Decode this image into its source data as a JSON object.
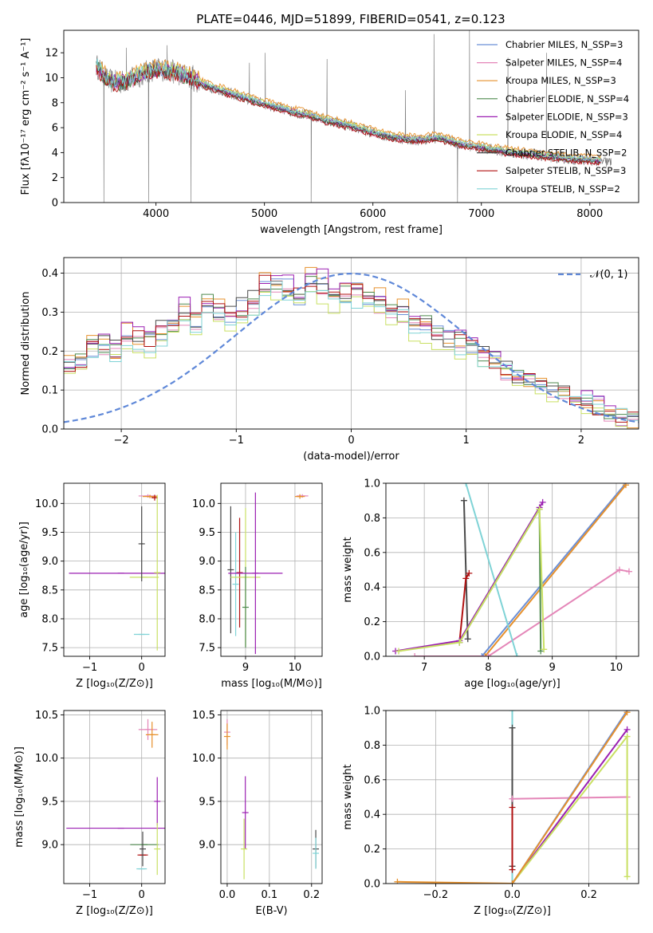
{
  "title": "PLATE=0446, MJD=51899, FIBERID=0541, z=0.123",
  "colors": {
    "Chabrier MILES": "#6b8fd6",
    "Salpeter MILES": "#e486b8",
    "Kroupa MILES": "#e6902b",
    "Chabrier ELODIE": "#4e8a4e",
    "Salpeter ELODIE": "#9b1fb2",
    "Kroupa ELODIE": "#c9e063",
    "Chabrier STELIB": "#4a4a4a",
    "Salpeter STELIB": "#b01010",
    "Kroupa STELIB": "#7fd3d6",
    "data": "#808080",
    "gauss": "#5f88d8"
  },
  "chart_data": [
    {
      "id": "spectrum",
      "type": "line",
      "title": "PLATE=0446, MJD=51899, FIBERID=0541, z=0.123",
      "xlabel": "wavelength [Angstrom, rest frame]",
      "ylabel": "Flux [fλ10⁻¹⁷ erg cm⁻² s⁻¹ A⁻¹]",
      "xlim": [
        3150,
        8450
      ],
      "ylim": [
        0,
        13.8
      ],
      "xticks": [
        4000,
        5000,
        6000,
        7000,
        8000
      ],
      "yticks": [
        0,
        2,
        4,
        6,
        8,
        10,
        12
      ],
      "legend_position": "top-right",
      "legend": [
        "Chabrier MILES, N_SSP=3",
        "Salpeter MILES, N_SSP=4",
        "Kroupa MILES, N_SSP=3",
        "Chabrier ELODIE, N_SSP=4",
        "Salpeter ELODIE, N_SSP=3",
        "Kroupa ELODIE, N_SSP=4",
        "Chabrier STELIB, N_SSP=2",
        "Salpeter STELIB, N_SSP=3",
        "Kroupa STELIB, N_SSP=2"
      ],
      "continuum": {
        "x": [
          3450,
          3550,
          3650,
          3750,
          3850,
          3950,
          4050,
          4150,
          4300,
          4450,
          4600,
          4800,
          5000,
          5200,
          5400,
          5600,
          5800,
          6000,
          6200,
          6400,
          6600,
          6800,
          7000,
          7200,
          7400,
          7600,
          7800,
          8000,
          8200
        ],
        "y": [
          11.0,
          9.8,
          9.6,
          9.8,
          10.2,
          10.6,
          10.7,
          10.5,
          10.1,
          9.4,
          9.0,
          8.4,
          7.9,
          7.4,
          7.0,
          6.5,
          6.1,
          5.6,
          5.2,
          5.0,
          5.2,
          4.7,
          4.4,
          4.1,
          3.9,
          3.7,
          3.5,
          3.4,
          3.2
        ]
      },
      "model_offsets": [
        0.0,
        -0.15,
        0.35,
        -0.1,
        0.05,
        0.15,
        -0.05,
        -0.2,
        0.1
      ],
      "data_noise": 0.45,
      "data_emission_lines": [
        {
          "x": 3727,
          "y": 12.4
        },
        {
          "x": 4102,
          "y": 12.6
        },
        {
          "x": 4341,
          "y": 11.0
        },
        {
          "x": 4861,
          "y": 11.2
        },
        {
          "x": 5007,
          "y": 12.0
        },
        {
          "x": 5577,
          "y": 11.5
        },
        {
          "x": 6300,
          "y": 9.0
        },
        {
          "x": 6563,
          "y": 13.5
        },
        {
          "x": 6890,
          "y": 13.8
        },
        {
          "x": 7245,
          "y": 11.6
        },
        {
          "x": 7600,
          "y": 12.0
        }
      ],
      "data_dips": [
        {
          "x": 3520,
          "y": 0
        },
        {
          "x": 3932,
          "y": 0
        },
        {
          "x": 4322,
          "y": 0
        },
        {
          "x": 5430,
          "y": 0
        },
        {
          "x": 6780,
          "y": 0
        }
      ],
      "x_range": [
        3450,
        8200
      ]
    },
    {
      "id": "residuals",
      "type": "histogram",
      "xlabel": "(data-model)/error",
      "ylabel": "Normed distribution",
      "xlim": [
        -2.5,
        2.5
      ],
      "ylim": [
        0,
        0.44
      ],
      "xticks": [
        -2,
        -1,
        0,
        1,
        2
      ],
      "yticks": [
        0.0,
        0.1,
        0.2,
        0.3,
        0.4
      ],
      "legend": [
        "𝒩(0, 1)"
      ],
      "legend_position": "top-right",
      "bin_edges_range": [
        -2.5,
        2.5
      ],
      "bin_count": 50,
      "base_profile": [
        0.16,
        0.18,
        0.21,
        0.22,
        0.2,
        0.24,
        0.23,
        0.22,
        0.25,
        0.27,
        0.3,
        0.28,
        0.33,
        0.3,
        0.29,
        0.31,
        0.33,
        0.37,
        0.38,
        0.36,
        0.34,
        0.39,
        0.37,
        0.33,
        0.35,
        0.35,
        0.33,
        0.33,
        0.31,
        0.3,
        0.26,
        0.27,
        0.24,
        0.23,
        0.22,
        0.21,
        0.19,
        0.18,
        0.15,
        0.14,
        0.13,
        0.12,
        0.1,
        0.1,
        0.08,
        0.07,
        0.06,
        0.04,
        0.03,
        0.02
      ],
      "series_scales": [
        1.0,
        0.97,
        1.03,
        0.99,
        1.05,
        0.9,
        1.02,
        1.0,
        0.95
      ]
    },
    {
      "id": "age-vs-Z",
      "type": "errorbar",
      "xlabel": "Z [log₁₀(Z/Z⊙)]",
      "ylabel": "age [log₁₀(age/yr)]",
      "xlim": [
        -1.5,
        0.45
      ],
      "ylim": [
        7.35,
        10.35
      ],
      "xticks": [
        -1,
        0
      ],
      "yticks": [
        7.5,
        8.0,
        8.5,
        9.0,
        9.5,
        10.0
      ],
      "points": [
        {
          "s": "Salpeter ELODIE",
          "x": -0.4,
          "xerr": 1.0,
          "y": 8.79,
          "yerr": 0
        },
        {
          "s": "Kroupa ELODIE",
          "x": 0.05,
          "xerr": 0.28,
          "y": 8.72,
          "yerr": 0
        },
        {
          "s": "Chabrier STELIB",
          "x": 0.0,
          "xerr": 0.02,
          "y": 9.3,
          "yerr": 0.65
        },
        {
          "s": "Kroupa STELIB",
          "x": 0.0,
          "xerr": 0.15,
          "y": 7.73,
          "yerr": 0
        },
        {
          "s": "Salpeter MILES",
          "x": 0.12,
          "xerr": 0.18,
          "y": 10.13,
          "yerr": 0.03
        },
        {
          "s": "Kroupa MILES",
          "x": 0.16,
          "xerr": 0.14,
          "y": 10.12,
          "yerr": 0.03
        },
        {
          "s": "Salpeter STELIB",
          "x": 0.25,
          "xerr": 0.05,
          "y": 10.1,
          "yerr": 0.05
        },
        {
          "s": "Kroupa ELODIE",
          "x": 0.3,
          "xerr": 0.0,
          "y": 8.8,
          "yerr": 1.35
        }
      ]
    },
    {
      "id": "age-vs-mass",
      "type": "errorbar",
      "xlabel": "mass [log₁₀(M/M⊙)]",
      "ylabel": "",
      "xlim": [
        8.5,
        10.55
      ],
      "ylim": [
        7.35,
        10.35
      ],
      "xticks": [
        9,
        10
      ],
      "yticks": [
        7.5,
        8.0,
        8.5,
        9.0,
        9.5,
        10.0
      ],
      "points": [
        {
          "s": "Chabrier STELIB",
          "x": 8.7,
          "xerr": 0,
          "y": 8.85,
          "yerr": 1.1
        },
        {
          "s": "Kroupa STELIB",
          "x": 8.8,
          "xerr": 0,
          "y": 8.6,
          "yerr": 0.9
        },
        {
          "s": "Salpeter STELIB",
          "x": 8.88,
          "xerr": 0,
          "y": 8.8,
          "yerr": 0.95
        },
        {
          "s": "Kroupa ELODIE",
          "x": 9.0,
          "xerr": 0.3,
          "y": 8.72,
          "yerr": 1.2
        },
        {
          "s": "Chabrier ELODIE",
          "x": 9.0,
          "xerr": 0,
          "y": 8.2,
          "yerr": 0.7
        },
        {
          "s": "Salpeter ELODIE",
          "x": 9.2,
          "xerr": 0.55,
          "y": 8.79,
          "yerr": 1.4
        },
        {
          "s": "Salpeter MILES",
          "x": 10.15,
          "xerr": 0.12,
          "y": 10.13,
          "yerr": 0.03
        },
        {
          "s": "Kroupa MILES",
          "x": 10.1,
          "xerr": 0.1,
          "y": 10.12,
          "yerr": 0.04
        }
      ]
    },
    {
      "id": "weight-vs-age",
      "type": "line",
      "xlabel": "age [log₁₀(age/yr)]",
      "ylabel": "mass weight",
      "xlim": [
        6.4,
        10.35
      ],
      "ylim": [
        0,
        1.0
      ],
      "xticks": [
        7,
        8,
        9,
        10
      ],
      "yticks": [
        0.0,
        0.2,
        0.4,
        0.6,
        0.8,
        1.0
      ],
      "series": [
        {
          "s": "Chabrier MILES",
          "x": [
            7.9,
            10.15
          ],
          "y": [
            0.0,
            1.0
          ]
        },
        {
          "s": "Kroupa MILES",
          "x": [
            7.95,
            10.15
          ],
          "y": [
            0.0,
            0.99
          ]
        },
        {
          "s": "Salpeter MILES",
          "x": [
            6.85,
            8.0,
            10.05,
            10.2
          ],
          "y": [
            0.0,
            0.0,
            0.5,
            0.49
          ]
        },
        {
          "s": "Kroupa STELIB",
          "x": [
            7.65,
            8.45
          ],
          "y": [
            1.0,
            0.0
          ]
        },
        {
          "s": "Chabrier STELIB",
          "x": [
            7.62,
            7.68
          ],
          "y": [
            0.9,
            0.1
          ]
        },
        {
          "s": "Salpeter STELIB",
          "x": [
            7.55,
            7.65,
            7.7
          ],
          "y": [
            0.08,
            0.45,
            0.48
          ]
        },
        {
          "s": "Salpeter ELODIE",
          "x": [
            6.55,
            7.55,
            8.8,
            8.85
          ],
          "y": [
            0.03,
            0.09,
            0.86,
            0.89
          ]
        },
        {
          "s": "Chabrier ELODIE",
          "x": [
            7.55,
            8.8,
            8.82
          ],
          "y": [
            0.08,
            0.85,
            0.03
          ]
        },
        {
          "s": "Kroupa ELODIE",
          "x": [
            6.6,
            7.55,
            8.8,
            8.87
          ],
          "y": [
            0.03,
            0.08,
            0.85,
            0.04
          ]
        }
      ]
    },
    {
      "id": "mass-vs-Z",
      "type": "errorbar",
      "xlabel": "Z [log₁₀(Z/Z⊙)]",
      "ylabel": "mass [log₁₀(M/M⊙)]",
      "xlim": [
        -1.5,
        0.45
      ],
      "ylim": [
        8.55,
        10.55
      ],
      "xticks": [
        -1,
        0
      ],
      "yticks": [
        9.0,
        9.5,
        10.0,
        10.5
      ],
      "points": [
        {
          "s": "Salpeter MILES",
          "x": 0.12,
          "xerr": 0.18,
          "y": 10.33,
          "yerr": 0.12
        },
        {
          "s": "Kroupa MILES",
          "x": 0.2,
          "xerr": 0.12,
          "y": 10.27,
          "yerr": 0.15
        },
        {
          "s": "Salpeter ELODIE",
          "x": -0.4,
          "xerr": 1.05,
          "y": 9.19,
          "yerr": 0
        },
        {
          "s": "Salpeter ELODIE",
          "x": 0.3,
          "xerr": 0,
          "y": 9.5,
          "yerr": 0.28
        },
        {
          "s": "Chabrier ELODIE",
          "x": 0.05,
          "xerr": 0.27,
          "y": 9.0,
          "yerr": 0
        },
        {
          "s": "Salpeter STELIB",
          "x": 0.02,
          "xerr": 0.1,
          "y": 8.88,
          "yerr": 0
        },
        {
          "s": "Kroupa STELIB",
          "x": 0.0,
          "xerr": 0.1,
          "y": 8.72,
          "yerr": 0
        },
        {
          "s": "Kroupa ELODIE",
          "x": 0.3,
          "xerr": 0,
          "y": 8.95,
          "yerr": 0.3
        },
        {
          "s": "Chabrier STELIB",
          "x": 0.02,
          "xerr": 0,
          "y": 8.95,
          "yerr": 0.2
        }
      ]
    },
    {
      "id": "mass-vs-ebv",
      "type": "errorbar",
      "xlabel": "E(B-V)",
      "ylabel": "",
      "xlim": [
        -0.015,
        0.225
      ],
      "ylim": [
        8.55,
        10.55
      ],
      "xticks": [
        0.0,
        0.1,
        0.2
      ],
      "xtick_labels": [
        "0.0",
        "0.1",
        "0.2"
      ],
      "yticks": [
        9.0,
        9.5,
        10.0,
        10.5
      ],
      "points": [
        {
          "s": "Salpeter MILES",
          "x": 0.0,
          "xerr": 0,
          "y": 10.3,
          "yerr": 0.15
        },
        {
          "s": "Kroupa MILES",
          "x": 0.0,
          "xerr": 0,
          "y": 10.25,
          "yerr": 0.15
        },
        {
          "s": "Salpeter ELODIE",
          "x": 0.043,
          "xerr": 0,
          "y": 9.37,
          "yerr": 0.42
        },
        {
          "s": "Kroupa ELODIE",
          "x": 0.04,
          "xerr": 0,
          "y": 8.95,
          "yerr": 0.35
        },
        {
          "s": "Chabrier STELIB",
          "x": 0.21,
          "xerr": 0,
          "y": 8.95,
          "yerr": 0.22
        },
        {
          "s": "Kroupa STELIB",
          "x": 0.21,
          "xerr": 0,
          "y": 8.9,
          "yerr": 0.18
        }
      ]
    },
    {
      "id": "weight-vs-Z",
      "type": "line",
      "xlabel": "Z [log₁₀(Z/Z⊙)]",
      "ylabel": "mass weight",
      "xlim": [
        -0.33,
        0.33
      ],
      "ylim": [
        0,
        1.0
      ],
      "xticks": [
        -0.2,
        0.0,
        0.2
      ],
      "xtick_labels": [
        "−0.2",
        "0.0",
        "0.2"
      ],
      "yticks": [
        0.0,
        0.2,
        0.4,
        0.6,
        0.8,
        1.0
      ],
      "series": [
        {
          "s": "Kroupa STELIB",
          "x": [
            0.0,
            0.0
          ],
          "y": [
            0.0,
            1.0
          ]
        },
        {
          "s": "Chabrier STELIB",
          "x": [
            0.0,
            0.0
          ],
          "y": [
            0.1,
            0.9
          ]
        },
        {
          "s": "Salpeter STELIB",
          "x": [
            0.0,
            0.0
          ],
          "y": [
            0.08,
            0.44
          ]
        },
        {
          "s": "Salpeter MILES",
          "x": [
            0.0,
            0.3
          ],
          "y": [
            0.49,
            0.5
          ]
        },
        {
          "s": "Salpeter ELODIE",
          "x": [
            0.0,
            0.3
          ],
          "y": [
            0.0,
            0.89
          ]
        },
        {
          "s": "Kroupa ELODIE",
          "x": [
            0.0,
            0.3,
            0.3
          ],
          "y": [
            0.0,
            0.85,
            0.04
          ]
        },
        {
          "s": "Chabrier MILES",
          "x": [
            0.0,
            0.3
          ],
          "y": [
            0.0,
            1.0
          ]
        },
        {
          "s": "Kroupa MILES",
          "x": [
            -0.3,
            0.0,
            0.3
          ],
          "y": [
            0.01,
            0.0,
            0.99
          ]
        }
      ]
    }
  ]
}
